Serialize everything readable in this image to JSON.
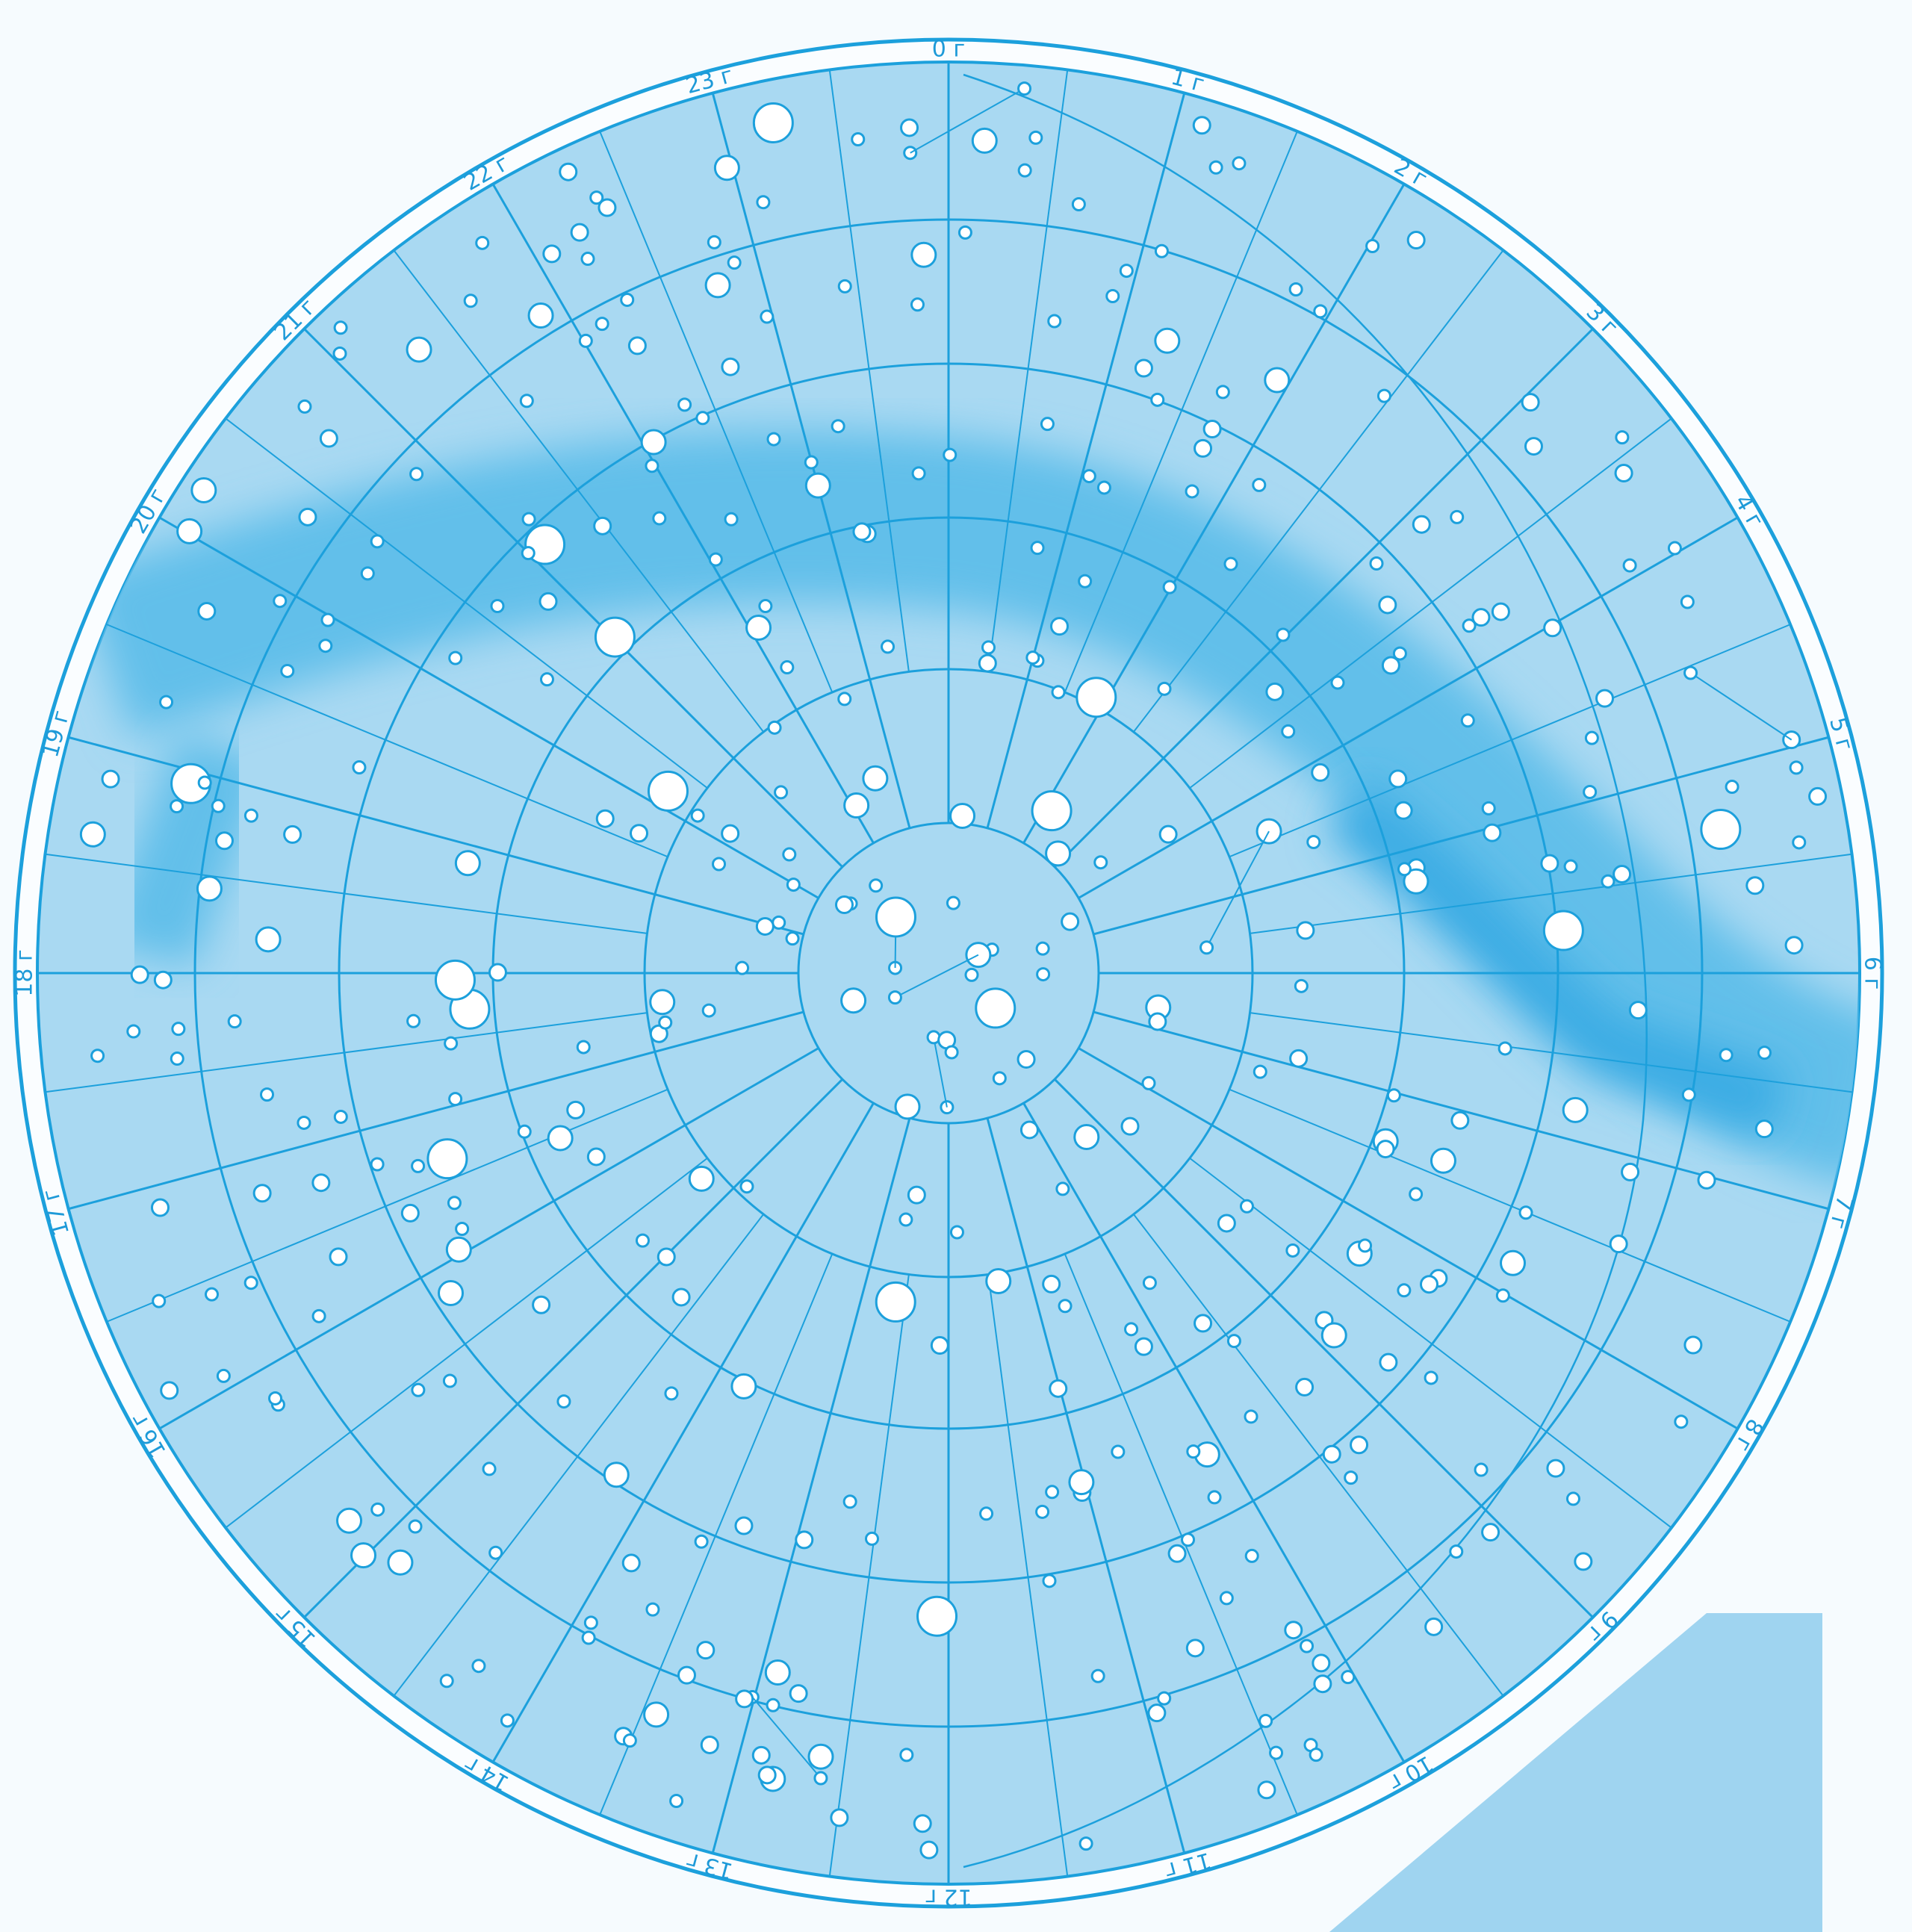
{
  "hour_labels": [
    "0 г",
    "1 г",
    "2 г",
    "3 г",
    "4 г",
    "5 г",
    "6 г",
    "7 г",
    "8 г",
    "9 г",
    "10 г",
    "11 г",
    "12 г",
    "13 г",
    "14 г",
    "15 г",
    "16 г",
    "17 г",
    "18 г",
    "19 г",
    "20 г",
    "21 г",
    "22 г",
    "23 г"
  ]
}
